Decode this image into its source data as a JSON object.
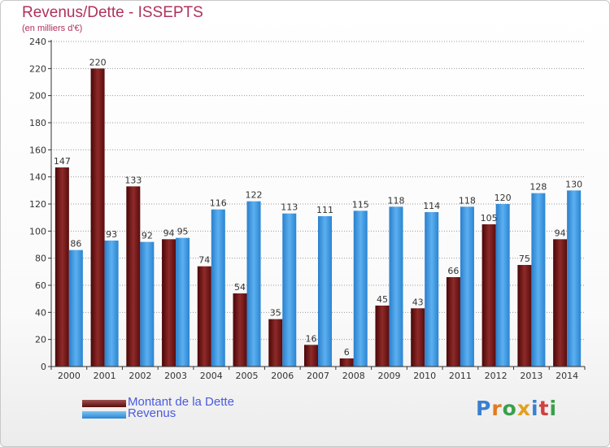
{
  "title": "Revenus/Dette - ISSEPTS",
  "subtitle": "(en milliers d'€)",
  "logo": {
    "text": "Proxiti",
    "letters": [
      {
        "ch": "P",
        "color": "#3a7fd0"
      },
      {
        "ch": "r",
        "color": "#e07b20"
      },
      {
        "ch": "o",
        "color": "#3aa04a"
      },
      {
        "ch": "x",
        "color": "#e0a020"
      },
      {
        "ch": "i",
        "color": "#3a7fd0"
      },
      {
        "ch": "t",
        "color": "#d04040"
      },
      {
        "ch": "i",
        "color": "#3aa04a"
      }
    ]
  },
  "colors": {
    "dette": "#7a1818",
    "revenus": "#2f8fe0",
    "axis": "#333333",
    "grid": "#999999"
  },
  "legend": [
    {
      "label": "Montant de la Dette",
      "color": "#7a1818"
    },
    {
      "label": "Revenus",
      "color": "#2f8fe0"
    }
  ],
  "chart_data": {
    "type": "bar",
    "title": "Revenus/Dette - ISSEPTS",
    "subtitle": "(en milliers d'€)",
    "categories": [
      "2000",
      "2001",
      "2002",
      "2003",
      "2004",
      "2005",
      "2006",
      "2007",
      "2008",
      "2009",
      "2010",
      "2011",
      "2012",
      "2013",
      "2014"
    ],
    "series": [
      {
        "name": "Montant de la Dette",
        "values": [
          147,
          220,
          133,
          94,
          74,
          54,
          35,
          16,
          6,
          45,
          43,
          66,
          105,
          75,
          94
        ]
      },
      {
        "name": "Revenus",
        "values": [
          86,
          93,
          92,
          95,
          116,
          122,
          113,
          111,
          115,
          118,
          114,
          118,
          120,
          128,
          130
        ]
      }
    ],
    "ylim": [
      0,
      240
    ],
    "yticks": [
      0,
      20,
      40,
      60,
      80,
      100,
      120,
      140,
      160,
      180,
      200,
      220,
      240
    ],
    "grid": true,
    "legend_position": "bottom-left"
  }
}
